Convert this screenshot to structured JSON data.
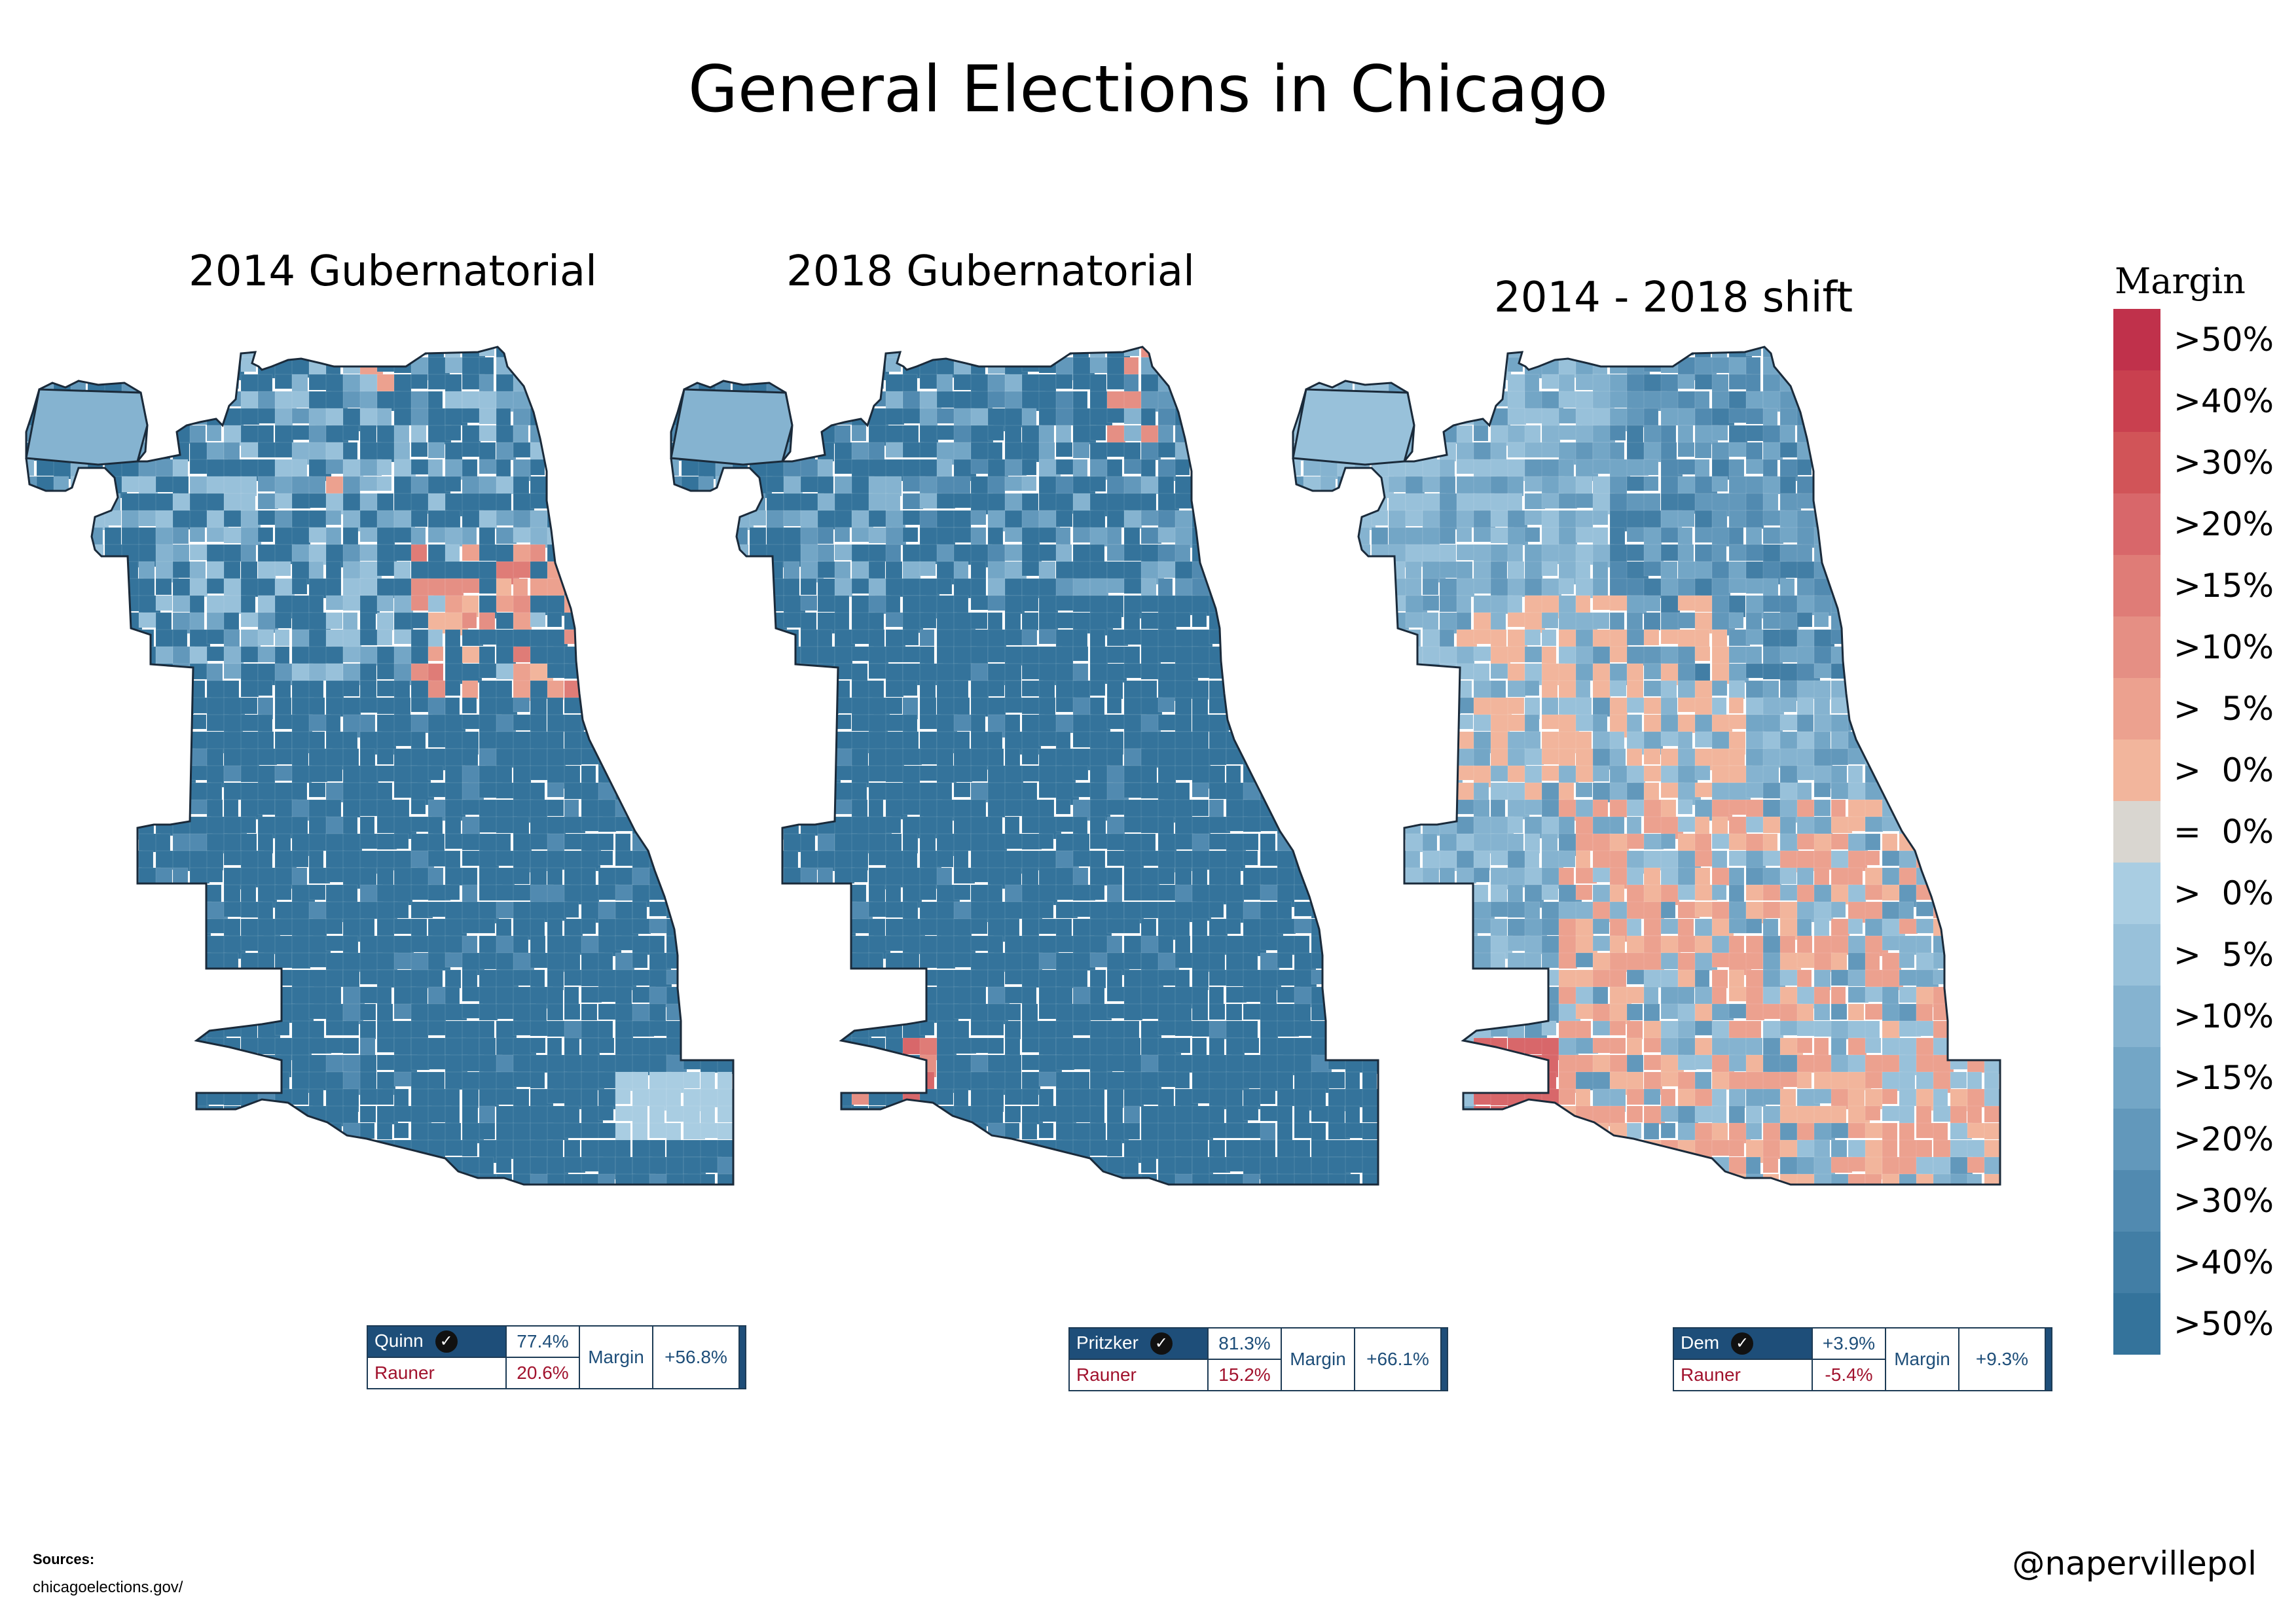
{
  "title": "General Elections in Chicago",
  "maps": [
    {
      "title": "2014 Gubernatorial",
      "scheme": "2014"
    },
    {
      "title": "2018 Gubernatorial",
      "scheme": "2018"
    },
    {
      "title": "2014 - 2018 shift",
      "scheme": "shift"
    }
  ],
  "legend": {
    "title": "Margin",
    "items": [
      {
        "label": ">50%",
        "color": "#c0314b"
      },
      {
        "label": ">40%",
        "color": "#c9404f"
      },
      {
        "label": ">30%",
        "color": "#d15458"
      },
      {
        "label": ">20%",
        "color": "#d8676a"
      },
      {
        "label": ">15%",
        "color": "#df7c77"
      },
      {
        "label": ">10%",
        "color": "#e58f84"
      },
      {
        "label": ">  5%",
        "color": "#eca18f"
      },
      {
        "label": ">  0%",
        "color": "#f2b59c"
      },
      {
        "label": "=  0%",
        "color": "#d9d6d0"
      },
      {
        "label": ">  0%",
        "color": "#a9cde2"
      },
      {
        "label": ">  5%",
        "color": "#98c1da"
      },
      {
        "label": ">10%",
        "color": "#85b3d0"
      },
      {
        "label": ">15%",
        "color": "#73a6c6"
      },
      {
        "label": ">20%",
        "color": "#6298bb"
      },
      {
        "label": ">30%",
        "color": "#518ab0"
      },
      {
        "label": ">40%",
        "color": "#427ea5"
      },
      {
        "label": ">50%",
        "color": "#34739b"
      }
    ]
  },
  "results": [
    {
      "winner": "Quinn",
      "winner_pct": "77.4%",
      "loser": "Rauner",
      "loser_pct": "20.6%",
      "margin_label": "Margin",
      "margin": "+56.8%"
    },
    {
      "winner": "Pritzker",
      "winner_pct": "81.3%",
      "loser": "Rauner",
      "loser_pct": "15.2%",
      "margin_label": "Margin",
      "margin": "+66.1%"
    },
    {
      "winner": "Dem",
      "winner_pct": "+3.9%",
      "loser": "Rauner",
      "loser_pct": "-5.4%",
      "margin_label": "Margin",
      "margin": "+9.3%"
    }
  ],
  "sources_heading": "Sources:",
  "sources": "chicagoelections.gov/",
  "handle": "@napervillepol",
  "icons": {
    "check": "checkmark-circle-icon"
  }
}
